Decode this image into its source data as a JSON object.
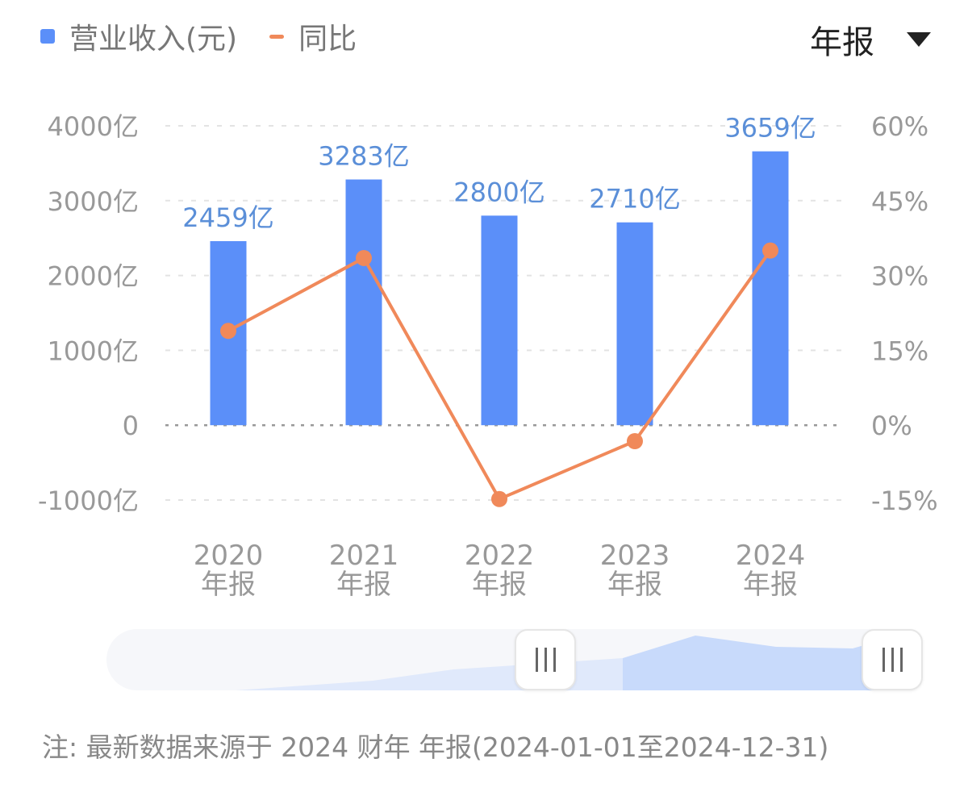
{
  "legend": {
    "revenue_label": "营业收入(元)",
    "yoy_label": "同比",
    "revenue_color": "#5b8ff9",
    "yoy_color": "#f0895a"
  },
  "period_selector": {
    "value": "年报"
  },
  "chart_data": {
    "type": "bar",
    "categories": [
      "2020\n年报",
      "2021\n年报",
      "2022\n年报",
      "2023\n年报",
      "2024\n年报"
    ],
    "category_lines": [
      [
        "2020",
        "年报"
      ],
      [
        "2021",
        "年报"
      ],
      [
        "2022",
        "年报"
      ],
      [
        "2023",
        "年报"
      ],
      [
        "2024",
        "年报"
      ]
    ],
    "series": [
      {
        "name": "营业收入(元)",
        "type": "bar",
        "axis": "left",
        "unit": "亿",
        "values": [
          2459,
          3283,
          2800,
          2710,
          3659
        ],
        "labels": [
          "2459亿",
          "3283亿",
          "2800亿",
          "2710亿",
          "3659亿"
        ],
        "color": "#5b8ff9"
      },
      {
        "name": "同比",
        "type": "line",
        "axis": "right",
        "unit": "%",
        "values": [
          18.9,
          33.5,
          -14.8,
          -3.2,
          35.0
        ],
        "color": "#f0895a"
      }
    ],
    "ylim_left": [
      -1000,
      4000
    ],
    "yticks_left": [
      4000,
      3000,
      2000,
      1000,
      0,
      -1000
    ],
    "yticklabels_left": [
      "4000亿",
      "3000亿",
      "2000亿",
      "1000亿",
      "0",
      "-1000亿"
    ],
    "ylim_right": [
      -15,
      60
    ],
    "yticks_right": [
      60,
      45,
      30,
      15,
      0,
      -15
    ],
    "yticklabels_right": [
      "60%",
      "45%",
      "30%",
      "15%",
      "0%",
      "-15%"
    ],
    "grid": true
  },
  "range_slider": {
    "handle_left_icon": "grip-icon",
    "handle_right_icon": "grip-icon"
  },
  "footnote": "注: 最新数据来源于 2024 财年 年报(2024-01-01至2024-12-31)"
}
